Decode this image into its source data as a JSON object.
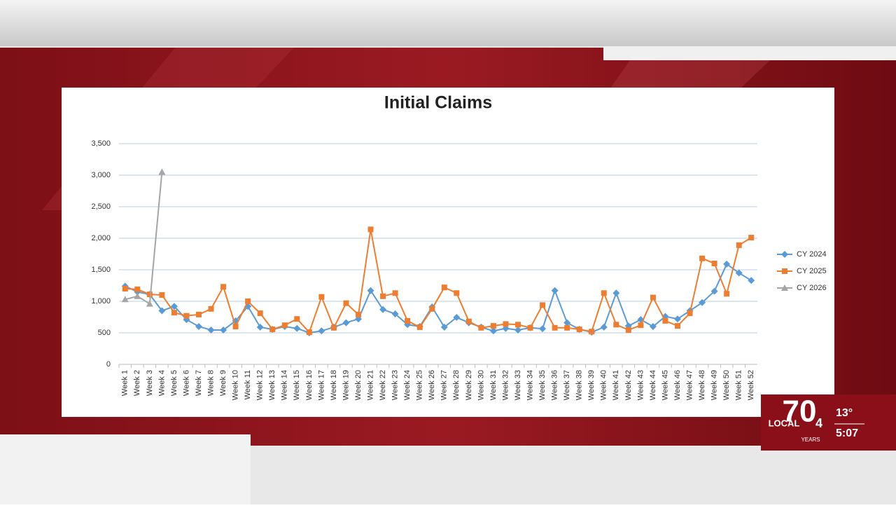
{
  "chart_data": {
    "type": "line",
    "title": "Initial Claims",
    "categories": [
      "Week 1",
      "Week 2",
      "Week 3",
      "Week 4",
      "Week 5",
      "Week 6",
      "Week 7",
      "Week 8",
      "Week 9",
      "Week 10",
      "Week 11",
      "Week 12",
      "Week 13",
      "Week 14",
      "Week 15",
      "Week 16",
      "Week 17",
      "Week 18",
      "Week 19",
      "Week 20",
      "Week 21",
      "Week 22",
      "Week 23",
      "Week 24",
      "Week 25",
      "Week 26",
      "Week 27",
      "Week 28",
      "Week 29",
      "Week 30",
      "Week 31",
      "Week 32",
      "Week 33",
      "Week 34",
      "Week 35",
      "Week 36",
      "Week 37",
      "Week 38",
      "Week 39",
      "Week 40",
      "Week 41",
      "Week 42",
      "Week 43",
      "Week 44",
      "Week 45",
      "Week 46",
      "Week 47",
      "Week 48",
      "Week 49",
      "Week 50",
      "Week 51",
      "Week 52"
    ],
    "series": [
      {
        "name": "CY 2024",
        "color": "#5b9bd5",
        "marker": "diamond",
        "values": [
          1240,
          1150,
          1110,
          850,
          920,
          710,
          600,
          545,
          545,
          690,
          920,
          590,
          555,
          600,
          570,
          500,
          530,
          590,
          660,
          720,
          1170,
          870,
          800,
          630,
          600,
          910,
          590,
          745,
          660,
          590,
          530,
          570,
          545,
          580,
          565,
          1170,
          660,
          555,
          510,
          590,
          1130,
          610,
          710,
          600,
          760,
          720,
          850,
          980,
          1160,
          1590,
          1450,
          1330
        ]
      },
      {
        "name": "CY 2025",
        "color": "#ed7d31",
        "marker": "square",
        "values": [
          1200,
          1190,
          1110,
          1100,
          820,
          770,
          790,
          880,
          1230,
          600,
          1000,
          810,
          555,
          620,
          720,
          510,
          1070,
          580,
          970,
          790,
          2140,
          1080,
          1130,
          690,
          590,
          880,
          1220,
          1130,
          680,
          580,
          610,
          640,
          630,
          580,
          940,
          580,
          580,
          555,
          520,
          1130,
          630,
          545,
          620,
          1060,
          690,
          610,
          810,
          1680,
          1600,
          1120,
          1890,
          2010
        ]
      },
      {
        "name": "CY 2026",
        "color": "#a5a5a5",
        "marker": "triangle",
        "values": [
          1030,
          1080,
          960,
          3050,
          null,
          null,
          null,
          null,
          null,
          null,
          null,
          null,
          null,
          null,
          null,
          null,
          null,
          null,
          null,
          null,
          null,
          null,
          null,
          null,
          null,
          null,
          null,
          null,
          null,
          null,
          null,
          null,
          null,
          null,
          null,
          null,
          null,
          null,
          null,
          null,
          null,
          null,
          null,
          null,
          null,
          null,
          null,
          null,
          null,
          null,
          null,
          null
        ]
      }
    ],
    "ylim": [
      0,
      3500
    ],
    "yticks": [
      0,
      500,
      {
        "value": 1000,
        "label": "1,000"
      },
      {
        "value": 1500,
        "label": "1,500"
      },
      {
        "value": 2000,
        "label": "2,000"
      },
      {
        "value": 2500,
        "label": "2,500"
      },
      {
        "value": 3000,
        "label": "3,000"
      },
      {
        "value": 3500,
        "label": "3,500"
      }
    ],
    "grid": true,
    "legend": "right"
  },
  "overlay": {
    "station": "LOCAL",
    "channel": "4",
    "anniversary": "70",
    "years": "YEARS",
    "temperature": "13°",
    "time": "5:07"
  }
}
